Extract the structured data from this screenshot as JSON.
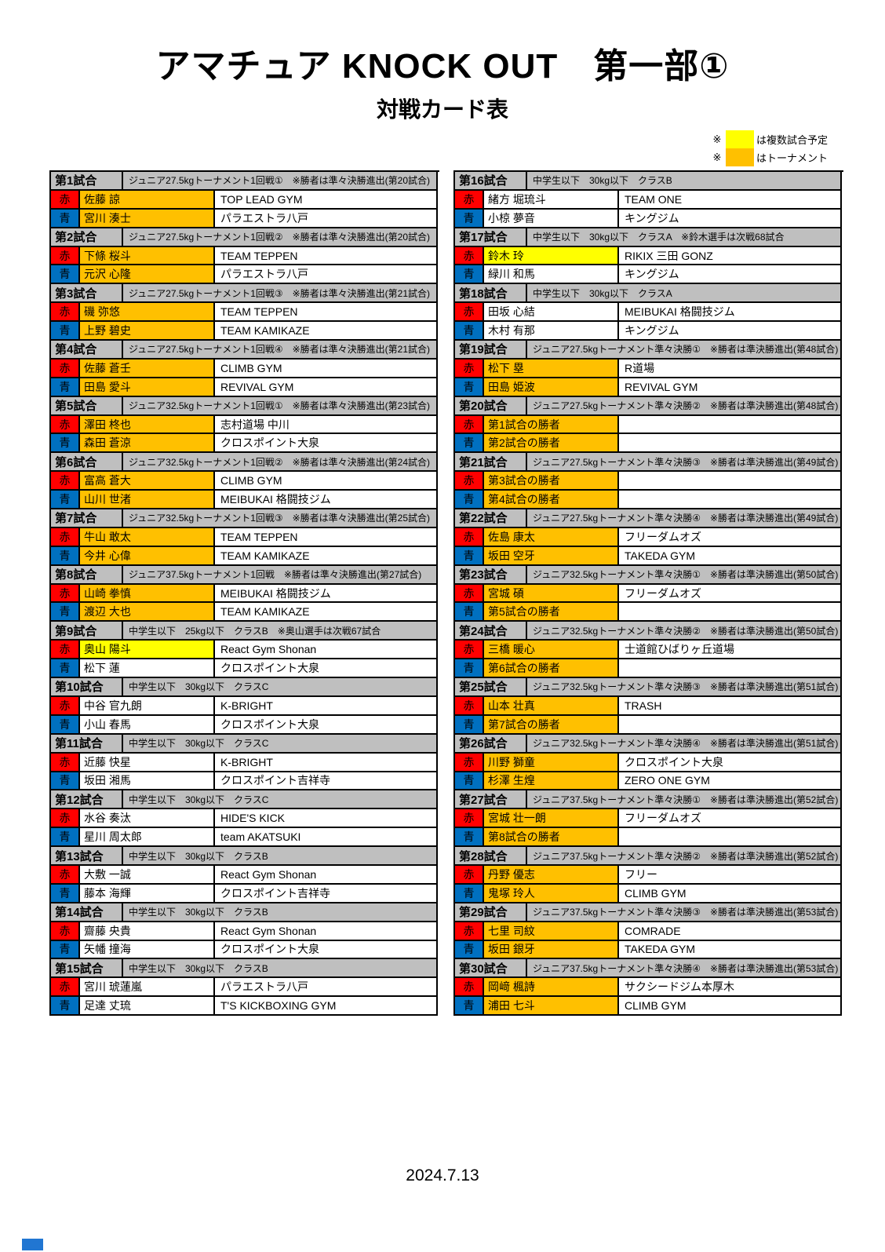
{
  "page": {
    "title": "アマチュア KNOCK OUT　第一部①",
    "subtitle": "対戦カード表",
    "date": "2024.7.13"
  },
  "legend": {
    "items": [
      {
        "mark": "※",
        "color": "#FFFF00",
        "label": "は複数試合予定"
      },
      {
        "mark": "※",
        "color": "#FFC000",
        "label": "はトーナメント"
      }
    ]
  },
  "corner_labels": {
    "red": "赤",
    "blue": "青"
  },
  "colors": {
    "red_corner": "#FF0000",
    "blue_corner": "#0070C0",
    "orange": "#FFC000",
    "yellow": "#FFFF00",
    "white": "#FFFFFF",
    "header_gray": "#BFBFBF",
    "bottom_mark_blue": "#2176D2"
  },
  "matches": [
    {
      "no": "第1試合",
      "desc": "ジュニア27.5kgトーナメント1回戦①　※勝者は準々決勝進出(第20試合)",
      "red": {
        "name": "佐藤 諒",
        "gym": "TOP LEAD GYM",
        "highlight": "orange"
      },
      "blue": {
        "name": "宮川 湊士",
        "gym": "パラエストラ八戸",
        "highlight": "orange"
      }
    },
    {
      "no": "第2試合",
      "desc": "ジュニア27.5kgトーナメント1回戦②　※勝者は準々決勝進出(第20試合)",
      "red": {
        "name": "下條 桜斗",
        "gym": "TEAM TEPPEN",
        "highlight": "orange"
      },
      "blue": {
        "name": "元沢 心隆",
        "gym": "パラエストラ八戸",
        "highlight": "orange"
      }
    },
    {
      "no": "第3試合",
      "desc": "ジュニア27.5kgトーナメント1回戦③　※勝者は準々決勝進出(第21試合)",
      "red": {
        "name": "磯 弥悠",
        "gym": "TEAM TEPPEN",
        "highlight": "orange"
      },
      "blue": {
        "name": "上野 碧史",
        "gym": "TEAM KAMIKAZE",
        "highlight": "orange"
      }
    },
    {
      "no": "第4試合",
      "desc": "ジュニア27.5kgトーナメント1回戦④　※勝者は準々決勝進出(第21試合)",
      "red": {
        "name": "佐藤 蒼壬",
        "gym": "CLIMB GYM",
        "highlight": "orange"
      },
      "blue": {
        "name": "田島 愛斗",
        "gym": "REVIVAL GYM",
        "highlight": "orange"
      }
    },
    {
      "no": "第5試合",
      "desc": "ジュニア32.5kgトーナメント1回戦①　※勝者は準々決勝進出(第23試合)",
      "red": {
        "name": "澤田 柊也",
        "gym": "志村道場 中川",
        "highlight": "orange"
      },
      "blue": {
        "name": "森田 蒼涼",
        "gym": "クロスポイント大泉",
        "highlight": "orange"
      }
    },
    {
      "no": "第6試合",
      "desc": "ジュニア32.5kgトーナメント1回戦②　※勝者は準々決勝進出(第24試合)",
      "red": {
        "name": "富高 蒼大",
        "gym": "CLIMB GYM",
        "highlight": "orange"
      },
      "blue": {
        "name": "山川 世渚",
        "gym": "MEIBUKAI 格闘技ジム",
        "highlight": "orange"
      }
    },
    {
      "no": "第7試合",
      "desc": "ジュニア32.5kgトーナメント1回戦③　※勝者は準々決勝進出(第25試合)",
      "red": {
        "name": "牛山 敢太",
        "gym": "TEAM TEPPEN",
        "highlight": "orange"
      },
      "blue": {
        "name": "今井 心偉",
        "gym": "TEAM KAMIKAZE",
        "highlight": "orange"
      }
    },
    {
      "no": "第8試合",
      "desc": "ジュニア37.5kgトーナメント1回戦　※勝者は準々決勝進出(第27試合)",
      "red": {
        "name": "山崎 拳慎",
        "gym": "MEIBUKAI 格闘技ジム",
        "highlight": "orange"
      },
      "blue": {
        "name": "渡辺 大也",
        "gym": "TEAM KAMIKAZE",
        "highlight": "orange"
      }
    },
    {
      "no": "第9試合",
      "desc": "中学生以下　25kg以下　クラスB　※奥山選手は次戦67試合",
      "red": {
        "name": "奥山 陽斗",
        "gym": "React Gym Shonan",
        "highlight": "yellow"
      },
      "blue": {
        "name": "松下 蓮",
        "gym": "クロスポイント大泉",
        "highlight": "white"
      }
    },
    {
      "no": "第10試合",
      "desc": "中学生以下　30kg以下　クラスC",
      "red": {
        "name": "中谷 官九朗",
        "gym": "K-BRIGHT",
        "highlight": "white"
      },
      "blue": {
        "name": "小山 春馬",
        "gym": "クロスポイント大泉",
        "highlight": "white"
      }
    },
    {
      "no": "第11試合",
      "desc": "中学生以下　30kg以下　クラスC",
      "red": {
        "name": "近藤 快星",
        "gym": "K-BRIGHT",
        "highlight": "white"
      },
      "blue": {
        "name": "坂田 湘馬",
        "gym": "クロスポイント吉祥寺",
        "highlight": "white"
      }
    },
    {
      "no": "第12試合",
      "desc": "中学生以下　30kg以下　クラスC",
      "red": {
        "name": "水谷 奏汰",
        "gym": "HIDE'S KICK",
        "highlight": "white"
      },
      "blue": {
        "name": "星川 周太郎",
        "gym": "team AKATSUKI",
        "highlight": "white"
      }
    },
    {
      "no": "第13試合",
      "desc": "中学生以下　30kg以下　クラスB",
      "red": {
        "name": "大敷 一誠",
        "gym": "React Gym Shonan",
        "highlight": "white"
      },
      "blue": {
        "name": "藤本 海輝",
        "gym": "クロスポイント吉祥寺",
        "highlight": "white"
      }
    },
    {
      "no": "第14試合",
      "desc": "中学生以下　30kg以下　クラスB",
      "red": {
        "name": "齋藤 央貴",
        "gym": "React Gym Shonan",
        "highlight": "white"
      },
      "blue": {
        "name": "矢幡 撞海",
        "gym": "クロスポイント大泉",
        "highlight": "white"
      }
    },
    {
      "no": "第15試合",
      "desc": "中学生以下　30kg以下　クラスB",
      "red": {
        "name": "宮川 琥蓮嵐",
        "gym": "パラエストラ八戸",
        "highlight": "white"
      },
      "blue": {
        "name": "足達 丈琉",
        "gym": "T'S KICKBOXING GYM",
        "highlight": "white"
      }
    },
    {
      "no": "第16試合",
      "desc": "中学生以下　30kg以下　クラスB",
      "red": {
        "name": "緒方 堀琉斗",
        "gym": "TEAM ONE",
        "highlight": "white"
      },
      "blue": {
        "name": "小椋 夢音",
        "gym": "キングジム",
        "highlight": "white"
      }
    },
    {
      "no": "第17試合",
      "desc": "中学生以下　30kg以下　クラスA　※鈴木選手は次戦68試合",
      "red": {
        "name": "鈴木 玲",
        "gym": "RIKIX 三田 GONZ",
        "highlight": "yellow"
      },
      "blue": {
        "name": "緑川 和馬",
        "gym": "キングジム",
        "highlight": "white"
      }
    },
    {
      "no": "第18試合",
      "desc": "中学生以下　30kg以下　クラスA",
      "red": {
        "name": "田坂 心結",
        "gym": "MEIBUKAI 格闘技ジム",
        "highlight": "white"
      },
      "blue": {
        "name": "木村 有那",
        "gym": "キングジム",
        "highlight": "white"
      }
    },
    {
      "no": "第19試合",
      "desc": "ジュニア27.5kgトーナメント準々決勝①　※勝者は準決勝進出(第48試合)",
      "red": {
        "name": "松下 塁",
        "gym": "R道場",
        "highlight": "orange"
      },
      "blue": {
        "name": "田島 姫波",
        "gym": "REVIVAL GYM",
        "highlight": "orange"
      }
    },
    {
      "no": "第20試合",
      "desc": "ジュニア27.5kgトーナメント準々決勝②　※勝者は準決勝進出(第48試合)",
      "red": {
        "name": "第1試合の勝者",
        "gym": "",
        "highlight": "orange"
      },
      "blue": {
        "name": "第2試合の勝者",
        "gym": "",
        "highlight": "orange"
      }
    },
    {
      "no": "第21試合",
      "desc": "ジュニア27.5kgトーナメント準々決勝③　※勝者は準決勝進出(第49試合)",
      "red": {
        "name": "第3試合の勝者",
        "gym": "",
        "highlight": "orange"
      },
      "blue": {
        "name": "第4試合の勝者",
        "gym": "",
        "highlight": "orange"
      }
    },
    {
      "no": "第22試合",
      "desc": "ジュニア27.5kgトーナメント準々決勝④　※勝者は準決勝進出(第49試合)",
      "red": {
        "name": "佐島 康太",
        "gym": "フリーダムオズ",
        "highlight": "orange"
      },
      "blue": {
        "name": "坂田 空牙",
        "gym": "TAKEDA GYM",
        "highlight": "orange"
      }
    },
    {
      "no": "第23試合",
      "desc": "ジュニア32.5kgトーナメント準々決勝①　※勝者は準決勝進出(第50試合)",
      "red": {
        "name": "宮城 碩",
        "gym": "フリーダムオズ",
        "highlight": "orange"
      },
      "blue": {
        "name": "第5試合の勝者",
        "gym": "",
        "highlight": "orange"
      }
    },
    {
      "no": "第24試合",
      "desc": "ジュニア32.5kgトーナメント準々決勝②　※勝者は準決勝進出(第50試合)",
      "red": {
        "name": "三橋 暖心",
        "gym": "士道館ひばりヶ丘道場",
        "highlight": "orange"
      },
      "blue": {
        "name": "第6試合の勝者",
        "gym": "",
        "highlight": "orange"
      }
    },
    {
      "no": "第25試合",
      "desc": "ジュニア32.5kgトーナメント準々決勝③　※勝者は準決勝進出(第51試合)",
      "red": {
        "name": "山本 壮真",
        "gym": "TRASH",
        "highlight": "orange"
      },
      "blue": {
        "name": "第7試合の勝者",
        "gym": "",
        "highlight": "orange"
      }
    },
    {
      "no": "第26試合",
      "desc": "ジュニア32.5kgトーナメント準々決勝④　※勝者は準決勝進出(第51試合)",
      "red": {
        "name": "川野 獅童",
        "gym": "クロスポイント大泉",
        "highlight": "orange"
      },
      "blue": {
        "name": "杉澤 生煌",
        "gym": "ZERO ONE GYM",
        "highlight": "orange"
      }
    },
    {
      "no": "第27試合",
      "desc": "ジュニア37.5kgトーナメント準々決勝①　※勝者は準決勝進出(第52試合)",
      "red": {
        "name": "宮城 壮一朗",
        "gym": "フリーダムオズ",
        "highlight": "orange"
      },
      "blue": {
        "name": "第8試合の勝者",
        "gym": "",
        "highlight": "orange"
      }
    },
    {
      "no": "第28試合",
      "desc": "ジュニア37.5kgトーナメント準々決勝②　※勝者は準決勝進出(第52試合)",
      "red": {
        "name": "丹野 優志",
        "gym": "フリー",
        "highlight": "orange"
      },
      "blue": {
        "name": "鬼塚 玲人",
        "gym": "CLIMB GYM",
        "highlight": "orange"
      }
    },
    {
      "no": "第29試合",
      "desc": "ジュニア37.5kgトーナメント準々決勝③　※勝者は準決勝進出(第53試合)",
      "red": {
        "name": "七里 司紋",
        "gym": "COMRADE",
        "highlight": "orange"
      },
      "blue": {
        "name": "坂田 銀牙",
        "gym": "TAKEDA GYM",
        "highlight": "orange"
      }
    },
    {
      "no": "第30試合",
      "desc": "ジュニア37.5kgトーナメント準々決勝④　※勝者は準決勝進出(第53試合)",
      "red": {
        "name": "岡﨑 楓詩",
        "gym": "サクシードジム本厚木",
        "highlight": "orange"
      },
      "blue": {
        "name": "浦田 七斗",
        "gym": "CLIMB GYM",
        "highlight": "orange"
      }
    }
  ]
}
